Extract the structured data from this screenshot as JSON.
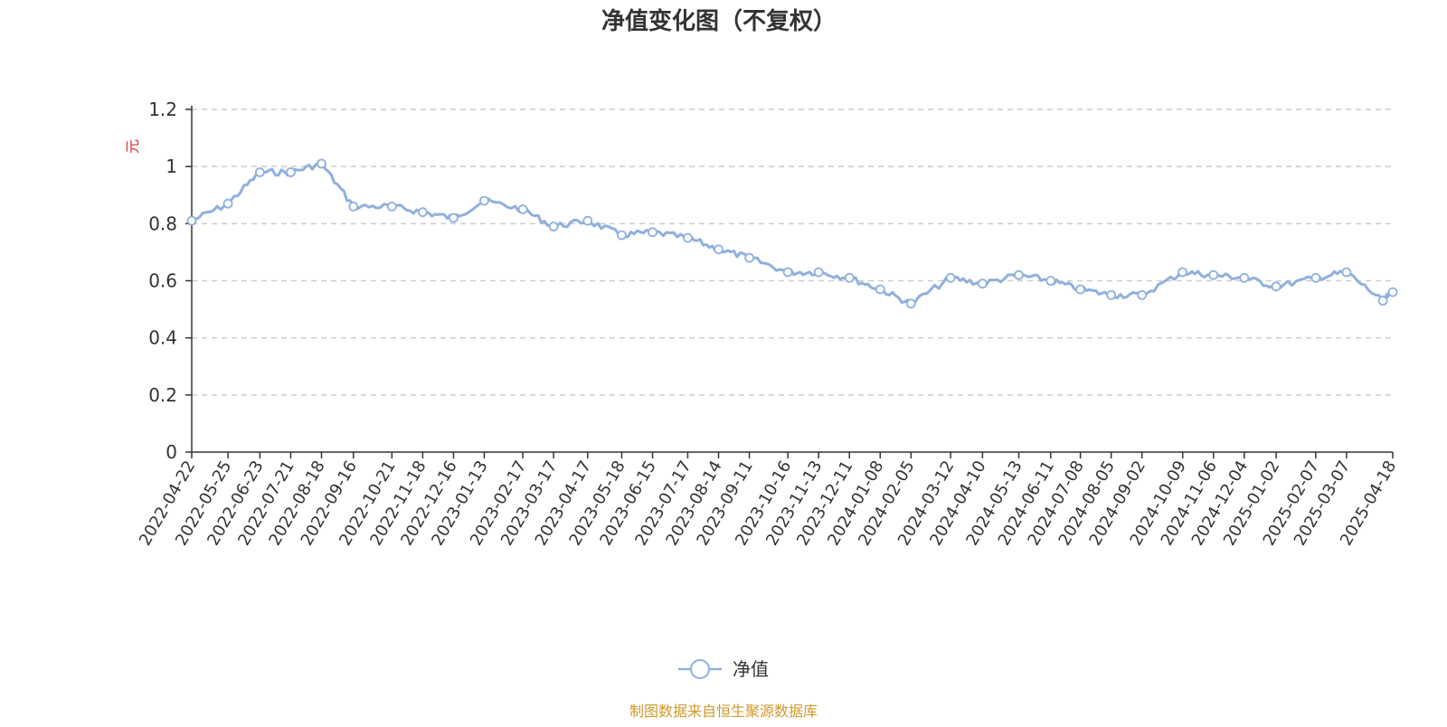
{
  "chart_data": {
    "type": "line",
    "title": "净值变化图（不复权）",
    "ylabel": "元",
    "ylim": [
      0,
      1.2
    ],
    "yticks": [
      "0",
      "0.2",
      "0.4",
      "0.6",
      "0.8",
      "1",
      "1.2"
    ],
    "grid": true,
    "legend_position": "bottom-center",
    "x_tick_labels": [
      "2022-04-22",
      "2022-05-25",
      "2022-06-23",
      "2022-07-21",
      "2022-08-18",
      "2022-09-16",
      "2022-10-21",
      "2022-11-18",
      "2022-12-16",
      "2023-01-13",
      "2023-02-17",
      "2023-03-17",
      "2023-04-17",
      "2023-05-18",
      "2023-06-15",
      "2023-07-17",
      "2023-08-14",
      "2023-09-11",
      "2023-10-16",
      "2023-11-13",
      "2023-12-11",
      "2024-01-08",
      "2024-02-05",
      "2024-03-12",
      "2024-04-10",
      "2024-05-13",
      "2024-06-11",
      "2024-07-08",
      "2024-08-05",
      "2024-09-02",
      "2024-10-09",
      "2024-11-06",
      "2024-12-04",
      "2025-01-02",
      "2025-02-07",
      "2025-03-07",
      "2025-04-18"
    ],
    "series": [
      {
        "name": "净值",
        "color": "#8fb0dd",
        "x": [
          "2022-04-22",
          "2022-05-25",
          "2022-06-23",
          "2022-07-21",
          "2022-08-18",
          "2022-09-16",
          "2022-10-21",
          "2022-11-18",
          "2022-12-16",
          "2023-01-13",
          "2023-02-17",
          "2023-03-17",
          "2023-04-17",
          "2023-05-18",
          "2023-06-15",
          "2023-07-17",
          "2023-08-14",
          "2023-09-11",
          "2023-10-16",
          "2023-11-13",
          "2023-12-11",
          "2024-01-08",
          "2024-02-05",
          "2024-03-12",
          "2024-04-10",
          "2024-05-13",
          "2024-06-11",
          "2024-07-08",
          "2024-08-05",
          "2024-09-02",
          "2024-10-09",
          "2024-11-06",
          "2024-12-04",
          "2025-01-02",
          "2025-02-07",
          "2025-03-07",
          "2025-04-09",
          "2025-04-18"
        ],
        "values": [
          0.81,
          0.87,
          0.98,
          0.98,
          1.01,
          0.86,
          0.86,
          0.84,
          0.82,
          0.88,
          0.85,
          0.79,
          0.81,
          0.76,
          0.77,
          0.75,
          0.71,
          0.68,
          0.63,
          0.63,
          0.61,
          0.57,
          0.52,
          0.61,
          0.59,
          0.62,
          0.6,
          0.57,
          0.55,
          0.55,
          0.63,
          0.62,
          0.61,
          0.58,
          0.61,
          0.63,
          0.53,
          0.56
        ]
      }
    ]
  },
  "footer": {
    "source_text": "制图数据来自恒生聚源数据库",
    "source_color": "#d09a2a"
  }
}
